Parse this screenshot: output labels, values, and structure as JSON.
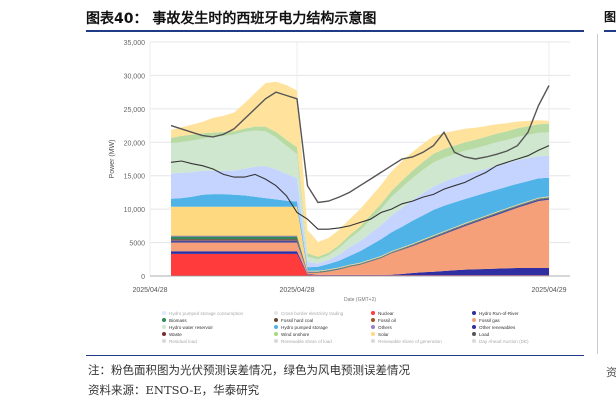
{
  "header": {
    "title": "图表40：  事故发生时的西班牙电力结构示意图",
    "right_edge_glyph": "图"
  },
  "footer": {
    "note": "注：粉色面积图为光伏预测误差情况，绿色为风电预测误差情况",
    "source": "资料来源：ENTSO-E，华泰研究",
    "right_edge_glyph": "资"
  },
  "chart_data": {
    "type": "area",
    "stacked": true,
    "ylabel": "Power (MW)",
    "xlabel": "Date (GMT+2)",
    "ylim": [
      0,
      35000
    ],
    "yticks": [
      0,
      5000,
      10000,
      15000,
      20000,
      25000,
      30000,
      35000
    ],
    "ytick_labels": [
      "0",
      "5000",
      "10,000",
      "15,000",
      "20,000",
      "25,000",
      "30,000",
      "35,000"
    ],
    "x_hours": [
      0,
      1,
      2,
      3,
      4,
      5,
      6,
      7,
      8,
      9,
      10,
      11,
      12,
      13,
      14,
      15,
      16,
      17,
      18,
      19,
      20,
      21,
      22,
      23,
      24,
      25,
      26,
      27,
      28,
      29,
      30,
      31,
      32,
      33,
      34,
      35,
      36
    ],
    "xlim": [
      -2,
      38
    ],
    "xtick_positions": [
      -2,
      12,
      36
    ],
    "xtick_labels": [
      "2025/04/28",
      "2025/04/28",
      "2025/04/29"
    ],
    "grid": true,
    "series": [
      {
        "name": "Nuclear",
        "color": "#ff3b3b",
        "values": [
          3300,
          3300,
          3300,
          3300,
          3300,
          3300,
          3300,
          3300,
          3300,
          3300,
          3300,
          3300,
          3300,
          150,
          100,
          100,
          100,
          100,
          100,
          100,
          100,
          100,
          100,
          100,
          100,
          100,
          100,
          100,
          100,
          100,
          100,
          100,
          100,
          100,
          100,
          100,
          100
        ]
      },
      {
        "name": "Other renewables",
        "color": "#2f2fa3",
        "values": [
          400,
          400,
          400,
          400,
          400,
          400,
          400,
          400,
          400,
          400,
          400,
          400,
          400,
          100,
          60,
          60,
          60,
          60,
          60,
          60,
          60,
          80,
          200,
          350,
          450,
          550,
          650,
          750,
          850,
          900,
          950,
          1000,
          1050,
          1100,
          1100,
          1100,
          1100
        ]
      },
      {
        "name": "Fossil gas",
        "color": "#f6a07a",
        "values": [
          1300,
          1300,
          1300,
          1300,
          1300,
          1300,
          1300,
          1300,
          1300,
          1300,
          1300,
          1300,
          1300,
          200,
          300,
          500,
          800,
          1200,
          1500,
          2000,
          2500,
          3200,
          3600,
          4000,
          4500,
          5000,
          5500,
          6000,
          6500,
          7000,
          7500,
          8000,
          8500,
          9000,
          9500,
          10000,
          10200
        ]
      },
      {
        "name": "Hydro Run-of-River",
        "color": "#4a4a9c",
        "values": [
          300,
          300,
          300,
          300,
          300,
          300,
          300,
          300,
          300,
          300,
          300,
          300,
          300,
          50,
          30,
          30,
          30,
          30,
          30,
          30,
          30,
          50,
          80,
          100,
          120,
          140,
          150,
          160,
          170,
          180,
          190,
          200,
          200,
          200,
          200,
          200,
          200
        ]
      },
      {
        "name": "Fossil hard coal",
        "color": "#6b4a2f",
        "values": [
          50,
          50,
          50,
          50,
          50,
          50,
          50,
          50,
          50,
          50,
          50,
          50,
          50,
          0,
          0,
          0,
          0,
          0,
          0,
          0,
          0,
          0,
          0,
          0,
          0,
          0,
          0,
          0,
          0,
          0,
          0,
          0,
          0,
          0,
          0,
          0,
          0
        ]
      },
      {
        "name": "Waste",
        "color": "#7a2f2f",
        "values": [
          150,
          150,
          150,
          150,
          150,
          150,
          150,
          150,
          150,
          150,
          150,
          150,
          150,
          50,
          50,
          50,
          50,
          50,
          50,
          50,
          50,
          50,
          50,
          50,
          50,
          50,
          50,
          50,
          50,
          50,
          50,
          50,
          50,
          50,
          50,
          50,
          50
        ]
      },
      {
        "name": "Biomass",
        "color": "#2e8b57",
        "values": [
          400,
          400,
          400,
          400,
          400,
          400,
          400,
          400,
          400,
          400,
          400,
          400,
          400,
          100,
          100,
          100,
          100,
          100,
          100,
          100,
          100,
          100,
          100,
          100,
          100,
          100,
          100,
          100,
          100,
          100,
          100,
          100,
          100,
          100,
          100,
          100,
          100
        ]
      },
      {
        "name": "Others",
        "color": "#9a7fc7",
        "values": [
          100,
          100,
          100,
          100,
          100,
          100,
          100,
          100,
          100,
          100,
          100,
          100,
          100,
          50,
          50,
          50,
          50,
          50,
          50,
          50,
          50,
          50,
          50,
          50,
          50,
          50,
          50,
          50,
          50,
          50,
          50,
          50,
          50,
          50,
          50,
          50,
          50
        ]
      },
      {
        "name": "Fossil oil",
        "color": "#a0522d",
        "values": [
          50,
          50,
          50,
          50,
          50,
          50,
          50,
          50,
          50,
          50,
          50,
          50,
          50,
          0,
          0,
          0,
          0,
          0,
          0,
          0,
          0,
          0,
          0,
          0,
          0,
          0,
          0,
          0,
          0,
          0,
          0,
          0,
          0,
          0,
          0,
          0,
          0
        ]
      },
      {
        "name": "Solar",
        "color": "#ffd980",
        "values": [
          4300,
          4300,
          4300,
          4300,
          4300,
          4300,
          4300,
          4300,
          4300,
          4300,
          4300,
          4300,
          4300,
          100,
          100,
          100,
          100,
          100,
          100,
          100,
          100,
          100,
          100,
          100,
          100,
          100,
          100,
          100,
          100,
          100,
          100,
          100,
          100,
          100,
          100,
          100,
          100
        ]
      },
      {
        "name": "Wind onshore",
        "color": "#4fb3e8",
        "values": [
          1200,
          1300,
          1500,
          1800,
          1900,
          1900,
          1800,
          1700,
          1500,
          1300,
          1100,
          900,
          800,
          500,
          600,
          800,
          1000,
          1300,
          1700,
          2100,
          2500,
          2800,
          3100,
          3400,
          3600,
          3800,
          3800,
          3700,
          3600,
          3500,
          3400,
          3300,
          3200,
          3100,
          3000,
          2900,
          2800
        ]
      },
      {
        "name": "Hydro pumped storage",
        "color": "#c4d4ff",
        "values": [
          3800,
          3800,
          3700,
          3600,
          3500,
          3500,
          3600,
          4000,
          4500,
          4800,
          4500,
          4000,
          3500,
          800,
          500,
          600,
          900,
          1300,
          1500,
          1800,
          2100,
          2500,
          2800,
          3100,
          3300,
          3500,
          3600,
          3700,
          3700,
          3600,
          3600,
          3600,
          3500,
          3500,
          3400,
          3300,
          3300
        ]
      },
      {
        "name": "Hydro water reservoir",
        "color": "#cfe6cf",
        "values": [
          4500,
          4600,
          4700,
          4800,
          5000,
          5200,
          5400,
          5500,
          5400,
          5200,
          4800,
          4200,
          3600,
          800,
          600,
          700,
          1000,
          1300,
          1600,
          2000,
          2400,
          2800,
          3100,
          3300,
          3500,
          3600,
          3600,
          3500,
          3500,
          3500,
          3500,
          3500,
          3500,
          3500,
          3500,
          3500,
          3500
        ]
      },
      {
        "name": "Wind forecast error",
        "color": "#b7dba3",
        "values": [
          800,
          900,
          900,
          800,
          700,
          600,
          500,
          500,
          600,
          700,
          800,
          900,
          1000,
          500,
          400,
          400,
          400,
          500,
          600,
          700,
          800,
          900,
          1000,
          1100,
          1200,
          1300,
          1300,
          1300,
          1300,
          1300,
          1300,
          1300,
          1300,
          1300,
          1300,
          1300,
          1300
        ]
      },
      {
        "name": "Solar forecast error",
        "color": "#ffe29b",
        "values": [
          1200,
          1300,
          1500,
          1700,
          2200,
          2400,
          2800,
          3800,
          5000,
          6500,
          7500,
          8200,
          8500,
          3500,
          2200,
          2200,
          2300,
          2400,
          2600,
          2700,
          2800,
          2900,
          2900,
          2800,
          2700,
          2600,
          2400,
          2200,
          2000,
          1800,
          1600,
          1400,
          1200,
          1000,
          800,
          600,
          400
        ]
      }
    ],
    "overlay_series": [
      {
        "name": "Load",
        "color": "#555555",
        "values": [
          22500,
          22000,
          21500,
          21000,
          20800,
          21200,
          22000,
          23500,
          25000,
          26500,
          27500,
          27000,
          26500,
          13500,
          11000,
          11200,
          11800,
          12500,
          13500,
          14500,
          15500,
          16500,
          17500,
          17800,
          18500,
          19500,
          21500,
          18500,
          17800,
          17500,
          17800,
          18200,
          18700,
          19500,
          21500,
          25500,
          28500
        ]
      },
      {
        "name": "Residual load",
        "color": "#333333",
        "values": [
          17000,
          17200,
          16800,
          16500,
          16000,
          15200,
          14800,
          14800,
          15200,
          14500,
          13500,
          12000,
          9500,
          8500,
          7000,
          7000,
          7200,
          7500,
          8000,
          8500,
          9500,
          10000,
          10800,
          11200,
          11800,
          12200,
          13000,
          13500,
          14000,
          14800,
          15500,
          16500,
          17000,
          17500,
          18000,
          18800,
          19500
        ]
      }
    ],
    "legend": {
      "placement": "bottom",
      "rows": [
        [
          "Hydro pumped storage consumption",
          "Cross border electricity trading",
          "Nuclear",
          "Hydro Run-of-River"
        ],
        [
          "Biomass",
          "Fossil hard coal",
          "Fossil oil",
          "Fossil gas"
        ],
        [
          "Hydro water reservoir",
          "Hydro pumped storage",
          "Others",
          "Other renewables"
        ],
        [
          "Waste",
          "Wind onshore",
          "Solar",
          "Load"
        ],
        [
          "Residual load",
          "Renewable share of load",
          "Renewable share of generation",
          "Day Ahead Auction (DE)"
        ]
      ],
      "colors": {
        "Hydro pumped storage consumption": "#c4d4ff",
        "Cross border electricity trading": "#cfcfcf",
        "Nuclear": "#ff3b3b",
        "Hydro Run-of-River": "#2f2fa3",
        "Biomass": "#2e8b57",
        "Fossil hard coal": "#6b4a2f",
        "Fossil oil": "#a0522d",
        "Fossil gas": "#f6a07a",
        "Hydro water reservoir": "#cfe6cf",
        "Hydro pumped storage": "#4fb3e8",
        "Others": "#9a7fc7",
        "Other renewables": "#2f2fa3",
        "Waste": "#7a2f2f",
        "Wind onshore": "#a6d97a",
        "Solar": "#ffd980",
        "Load": "#555555",
        "Residual load": "#bbbbbb",
        "Renewable share of load": "#bbbbbb",
        "Renewable share of generation": "#bbbbbb",
        "Day Ahead Auction (DE)": "#bbbbbb"
      }
    }
  }
}
